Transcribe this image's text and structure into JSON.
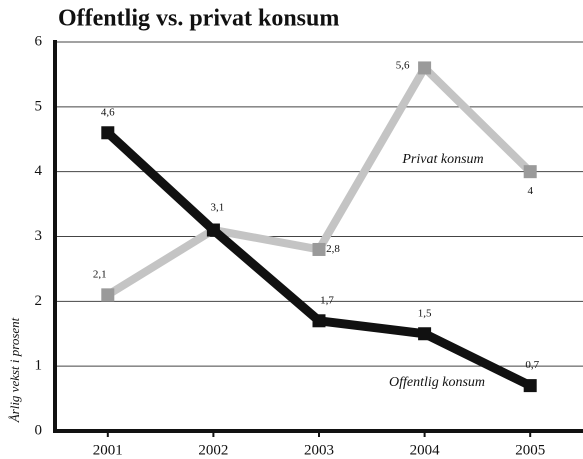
{
  "chart_data": {
    "type": "line",
    "title": "Offentlig vs. privat konsum",
    "y_label": "Årlig vekst i prosent",
    "categories": [
      "2001",
      "2002",
      "2003",
      "2004",
      "2005"
    ],
    "series": [
      {
        "name": "Privat konsum",
        "color": "#c4c4c4",
        "marker_color": "#9a9a9a",
        "values": [
          2.1,
          3.1,
          2.8,
          5.6,
          4.0
        ],
        "value_labels": [
          "2,1",
          null,
          "2,8",
          "5,6",
          "4"
        ]
      },
      {
        "name": "Offentlig konsum",
        "color": "#111111",
        "marker_color": "#111111",
        "values": [
          4.6,
          3.1,
          1.7,
          1.5,
          0.7
        ],
        "value_labels": [
          "4,6",
          "3,1",
          "1,7",
          "1,5",
          "0,7"
        ]
      }
    ],
    "ylim": [
      0,
      6
    ],
    "yticks": [
      0,
      1,
      2,
      3,
      4,
      5,
      6
    ],
    "grid": true
  }
}
